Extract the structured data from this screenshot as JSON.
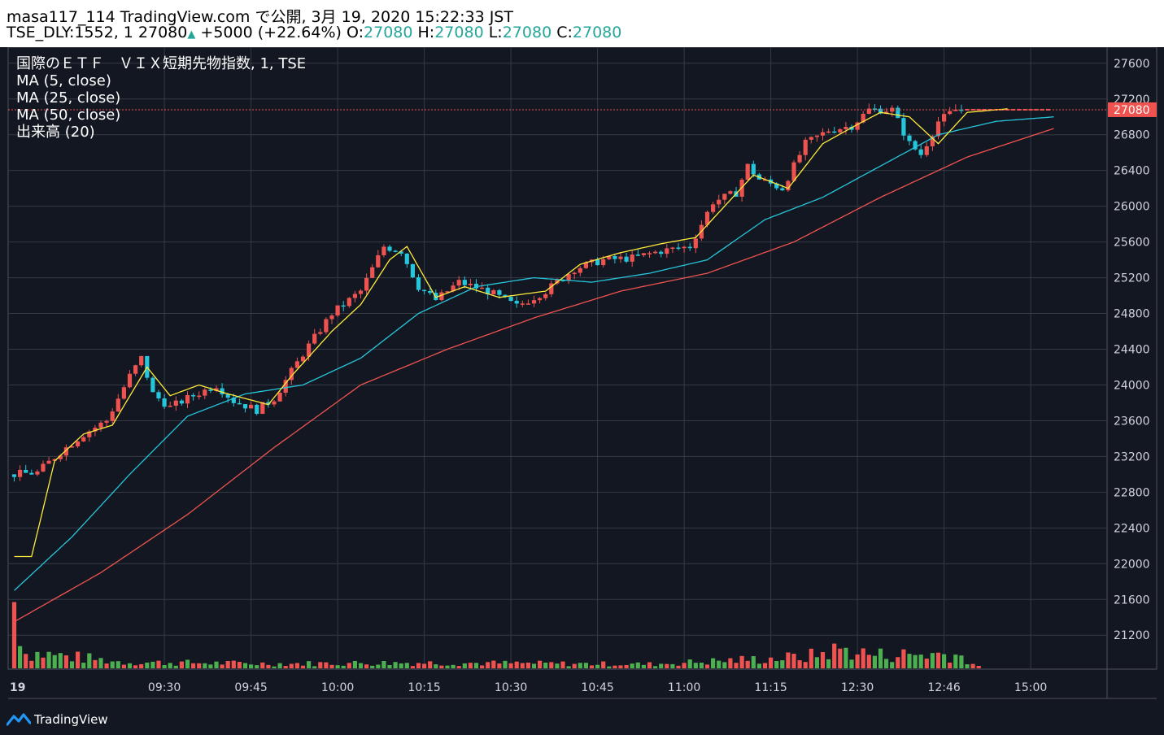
{
  "header": {
    "line1": "masa117_114 TradingView.com で公開, 3月 19, 2020 15:22:33 JST",
    "symbol": "TSE_DLY:1552, 1",
    "last": "27080",
    "change": "+5000 (+22.64%)",
    "o_label": "O:",
    "o_value": "27080",
    "h_label": "H:",
    "h_value": "27080",
    "l_label": "L:",
    "l_value": "27080",
    "c_label": "C:",
    "c_value": "27080"
  },
  "legend": {
    "title": "国際のＥＴＦ　ＶＩＸ短期先物指数, 1, TSE",
    "ma5": "MA (5, close)",
    "ma25": "MA (25, close)",
    "ma50": "MA (50, close)",
    "volume": "出来高 (20)"
  },
  "footer": {
    "brand": "TradingView",
    "logo_icon": "tradingview-logo-icon"
  },
  "colors": {
    "background": "#131722",
    "grid": "#363a45",
    "up": "#ef5350",
    "down": "#26c6da",
    "vol_up": "#ef5350",
    "vol_down": "#4caf50",
    "ma5": "#ffeb3b",
    "ma25": "#26c6da",
    "ma50": "#ef5350",
    "price_tag": "#ef5350"
  },
  "chart_data": {
    "type": "candlestick",
    "y_ticks": [
      21200,
      21600,
      22000,
      22400,
      22800,
      23200,
      23600,
      24000,
      24400,
      24800,
      25200,
      25600,
      26000,
      26400,
      26800,
      27200,
      27600
    ],
    "y_tick_labels": [
      "21200",
      "21600",
      "22000",
      "22400",
      "22800",
      "23200",
      "23600",
      "24000",
      "24400",
      "24800",
      "25200",
      "25600",
      "26000",
      "26400",
      "26800",
      "27200",
      "27600"
    ],
    "ylim": [
      20820,
      27780
    ],
    "x_ticks": [
      "19",
      "09:30",
      "09:45",
      "10:00",
      "10:15",
      "10:30",
      "10:45",
      "11:00",
      "11:15",
      "12:30",
      "12:46",
      "15:00"
    ],
    "current_price": 27080,
    "current_price_label": "27080",
    "series_keys": [
      {
        "t": 0,
        "p": 23000
      },
      {
        "t": 4,
        "p": 23020
      },
      {
        "t": 8,
        "p": 23250
      },
      {
        "t": 12,
        "p": 23450
      },
      {
        "t": 16,
        "p": 23600
      },
      {
        "t": 20,
        "p": 24100
      },
      {
        "t": 22,
        "p": 24300
      },
      {
        "t": 24,
        "p": 23900
      },
      {
        "t": 27,
        "p": 23750
      },
      {
        "t": 30,
        "p": 23850
      },
      {
        "t": 35,
        "p": 24000
      },
      {
        "t": 38,
        "p": 23820
      },
      {
        "t": 42,
        "p": 23720
      },
      {
        "t": 45,
        "p": 23850
      },
      {
        "t": 50,
        "p": 24350
      },
      {
        "t": 55,
        "p": 24800
      },
      {
        "t": 60,
        "p": 25050
      },
      {
        "t": 64,
        "p": 25550
      },
      {
        "t": 67,
        "p": 25500
      },
      {
        "t": 70,
        "p": 25100
      },
      {
        "t": 73,
        "p": 24950
      },
      {
        "t": 77,
        "p": 25150
      },
      {
        "t": 82,
        "p": 25050
      },
      {
        "t": 87,
        "p": 24880
      },
      {
        "t": 92,
        "p": 25050
      },
      {
        "t": 97,
        "p": 25300
      },
      {
        "t": 102,
        "p": 25400
      },
      {
        "t": 107,
        "p": 25420
      },
      {
        "t": 112,
        "p": 25500
      },
      {
        "t": 117,
        "p": 25550
      },
      {
        "t": 121,
        "p": 26050
      },
      {
        "t": 125,
        "p": 26150
      },
      {
        "t": 127,
        "p": 26450
      },
      {
        "t": 129,
        "p": 26300
      },
      {
        "t": 133,
        "p": 26200
      },
      {
        "t": 137,
        "p": 26700
      },
      {
        "t": 141,
        "p": 26850
      },
      {
        "t": 145,
        "p": 26900
      },
      {
        "t": 148,
        "p": 27080
      },
      {
        "t": 152,
        "p": 27080
      },
      {
        "t": 155,
        "p": 26700
      },
      {
        "t": 157,
        "p": 26580
      },
      {
        "t": 160,
        "p": 26950
      },
      {
        "t": 163,
        "p": 27080
      },
      {
        "t": 179,
        "p": 27080
      }
    ],
    "volume_keys": [
      {
        "t": 0,
        "v": 650,
        "up": false
      },
      {
        "t": 2,
        "v": 150,
        "up": true
      },
      {
        "t": 5,
        "v": 140,
        "up": true
      },
      {
        "t": 19,
        "v": 60,
        "up": true
      },
      {
        "t": 45,
        "v": 45,
        "up": true
      },
      {
        "t": 70,
        "v": 55,
        "up": false
      },
      {
        "t": 110,
        "v": 40,
        "up": true
      },
      {
        "t": 137,
        "v": 110,
        "up": true
      },
      {
        "t": 143,
        "v": 185,
        "up": false
      },
      {
        "t": 149,
        "v": 130,
        "up": true
      },
      {
        "t": 163,
        "v": 140,
        "up": true
      },
      {
        "t": 167,
        "v": 15,
        "up": false
      }
    ],
    "ma5": [
      {
        "t": 0,
        "p": 22080
      },
      {
        "t": 3,
        "p": 22080
      },
      {
        "t": 7,
        "p": 23150
      },
      {
        "t": 12,
        "p": 23450
      },
      {
        "t": 17,
        "p": 23550
      },
      {
        "t": 23,
        "p": 24200
      },
      {
        "t": 27,
        "p": 23880
      },
      {
        "t": 32,
        "p": 24000
      },
      {
        "t": 37,
        "p": 23900
      },
      {
        "t": 44,
        "p": 23780
      },
      {
        "t": 48,
        "p": 24100
      },
      {
        "t": 55,
        "p": 24600
      },
      {
        "t": 60,
        "p": 24900
      },
      {
        "t": 65,
        "p": 25400
      },
      {
        "t": 68,
        "p": 25550
      },
      {
        "t": 73,
        "p": 24980
      },
      {
        "t": 78,
        "p": 25100
      },
      {
        "t": 84,
        "p": 24980
      },
      {
        "t": 92,
        "p": 25050
      },
      {
        "t": 98,
        "p": 25350
      },
      {
        "t": 105,
        "p": 25480
      },
      {
        "t": 112,
        "p": 25580
      },
      {
        "t": 118,
        "p": 25650
      },
      {
        "t": 123,
        "p": 26000
      },
      {
        "t": 128,
        "p": 26350
      },
      {
        "t": 134,
        "p": 26200
      },
      {
        "t": 140,
        "p": 26700
      },
      {
        "t": 145,
        "p": 26880
      },
      {
        "t": 150,
        "p": 27050
      },
      {
        "t": 155,
        "p": 27000
      },
      {
        "t": 160,
        "p": 26700
      },
      {
        "t": 165,
        "p": 27050
      },
      {
        "t": 172,
        "p": 27090
      }
    ],
    "ma25": [
      {
        "t": 0,
        "p": 21700
      },
      {
        "t": 10,
        "p": 22300
      },
      {
        "t": 20,
        "p": 23000
      },
      {
        "t": 30,
        "p": 23650
      },
      {
        "t": 40,
        "p": 23900
      },
      {
        "t": 50,
        "p": 24000
      },
      {
        "t": 60,
        "p": 24300
      },
      {
        "t": 70,
        "p": 24800
      },
      {
        "t": 80,
        "p": 25100
      },
      {
        "t": 90,
        "p": 25200
      },
      {
        "t": 100,
        "p": 25150
      },
      {
        "t": 110,
        "p": 25250
      },
      {
        "t": 120,
        "p": 25400
      },
      {
        "t": 130,
        "p": 25850
      },
      {
        "t": 140,
        "p": 26100
      },
      {
        "t": 150,
        "p": 26450
      },
      {
        "t": 160,
        "p": 26800
      },
      {
        "t": 170,
        "p": 26950
      },
      {
        "t": 180,
        "p": 27000
      }
    ],
    "ma50": [
      {
        "t": 0,
        "p": 21350
      },
      {
        "t": 15,
        "p": 21900
      },
      {
        "t": 30,
        "p": 22550
      },
      {
        "t": 45,
        "p": 23300
      },
      {
        "t": 60,
        "p": 24000
      },
      {
        "t": 75,
        "p": 24400
      },
      {
        "t": 90,
        "p": 24750
      },
      {
        "t": 105,
        "p": 25050
      },
      {
        "t": 120,
        "p": 25250
      },
      {
        "t": 135,
        "p": 25600
      },
      {
        "t": 150,
        "p": 26100
      },
      {
        "t": 165,
        "p": 26550
      },
      {
        "t": 180,
        "p": 26870
      }
    ]
  }
}
